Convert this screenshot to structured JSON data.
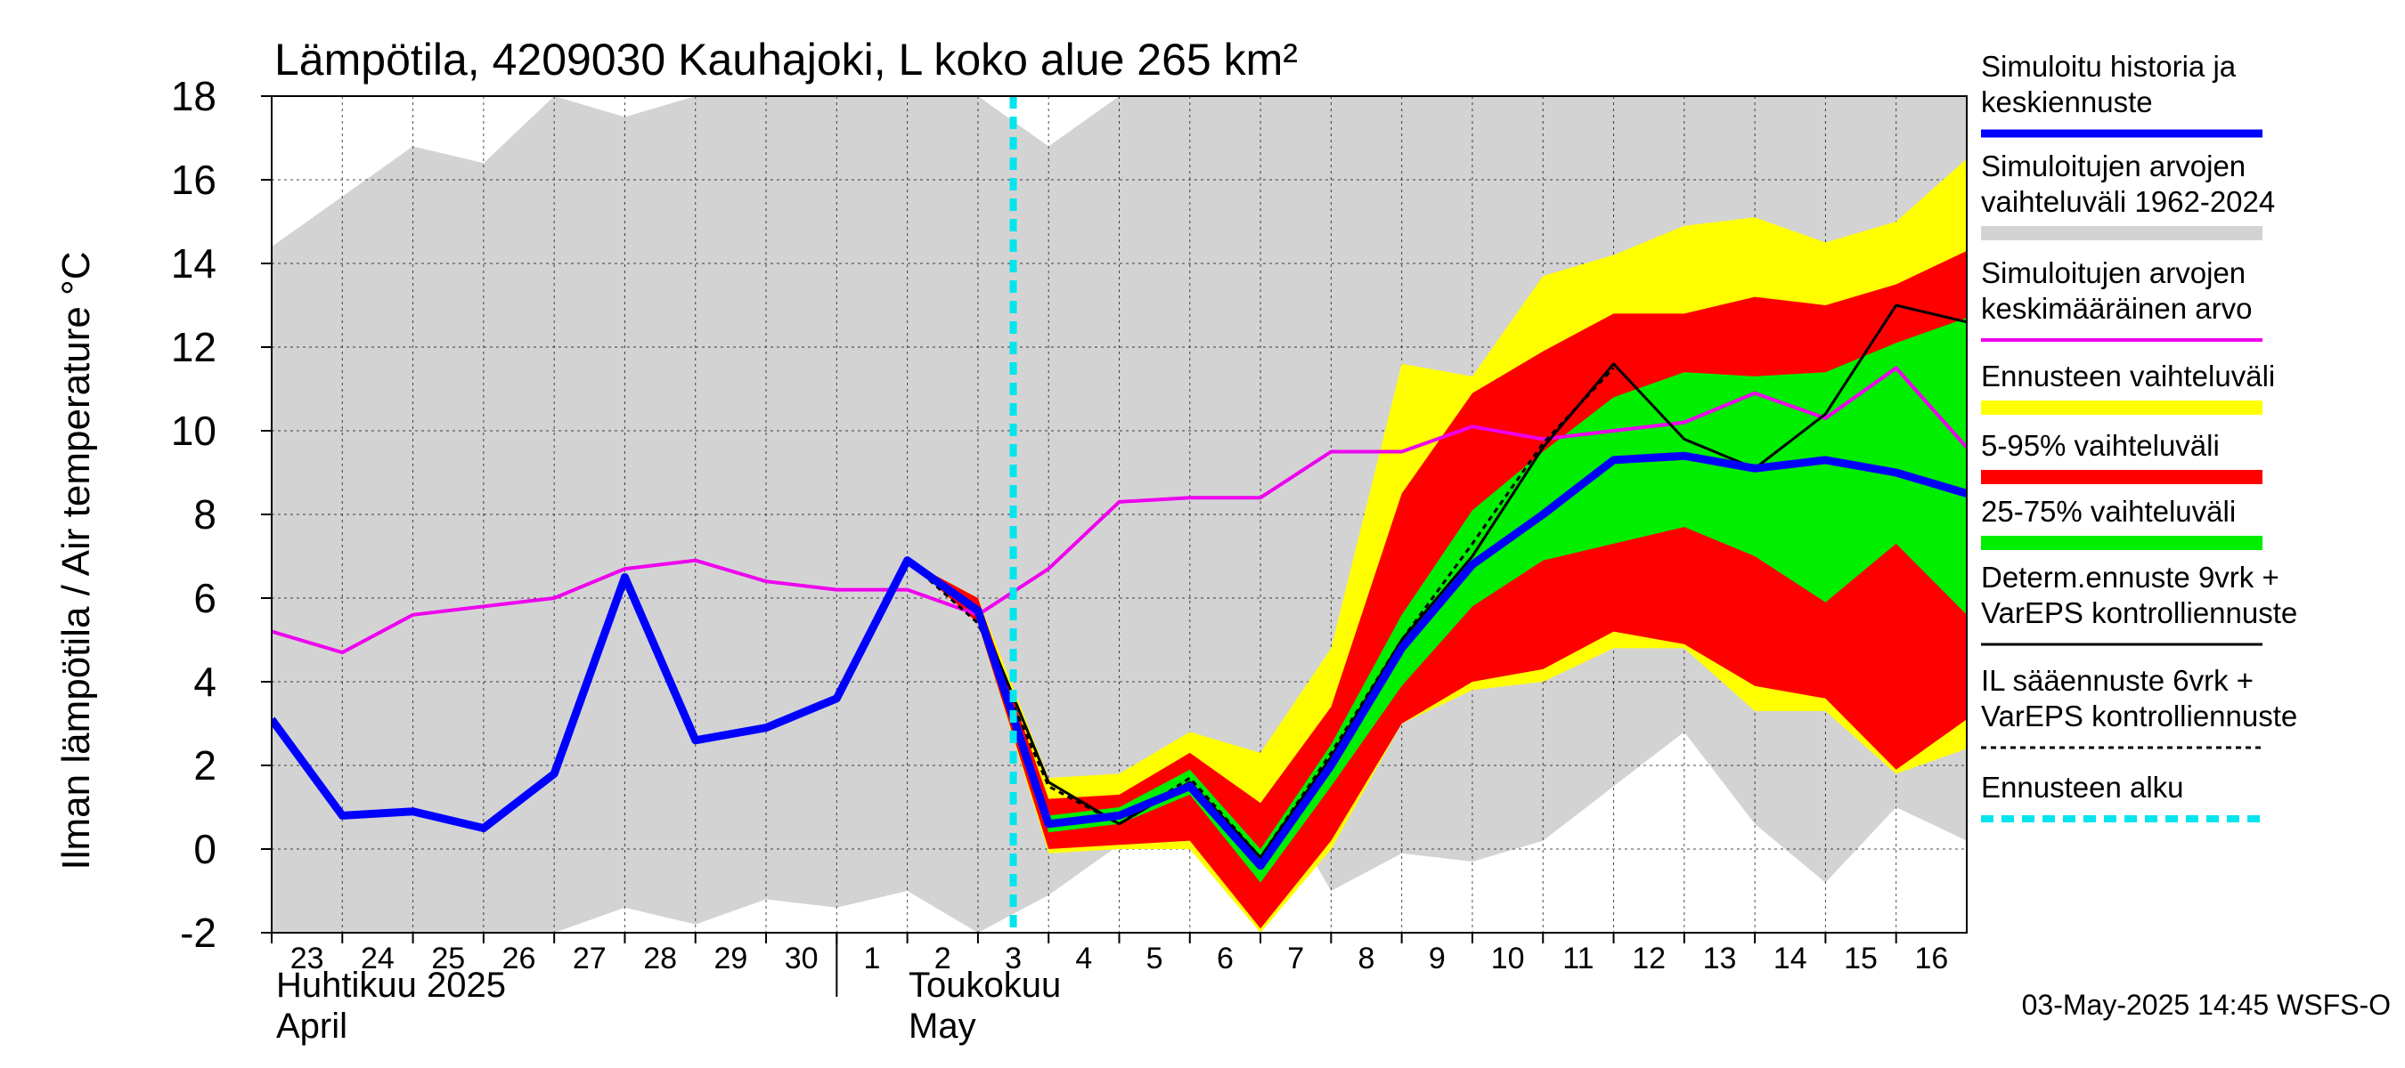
{
  "chart_data": {
    "type": "line",
    "title": "Lämpötila, 4209030 Kauhajoki, L koko alue 265 km²",
    "ylabel": "Ilman lämpötila / Air temperature   °C",
    "ylim": [
      -2,
      18
    ],
    "yticks": [
      "18",
      "16",
      "14",
      "12",
      "10",
      "8",
      "6",
      "4",
      "2",
      "0",
      "-2"
    ],
    "x_start": 23,
    "day_labels": [
      "23",
      "24",
      "25",
      "26",
      "27",
      "28",
      "29",
      "30",
      "1",
      "2",
      "3",
      "4",
      "5",
      "6",
      "7",
      "8",
      "9",
      "10",
      "11",
      "12",
      "13",
      "14",
      "15",
      "16"
    ],
    "month_labels": {
      "april_fi": "Huhtikuu  2025",
      "april_en": "April",
      "may_fi": "Toukokuu",
      "may_en": "May"
    },
    "footer": "03-May-2025 14:45 WSFS-O",
    "forecast_start": 33.5,
    "x": [
      23,
      24,
      25,
      26,
      27,
      28,
      29,
      30,
      31,
      32,
      33,
      34,
      35,
      36,
      37,
      38,
      39,
      40,
      41,
      42,
      43,
      44,
      45,
      46,
      47
    ],
    "series": {
      "hist_max": [
        14.4,
        15.6,
        16.8,
        16.4,
        18,
        17.5,
        18,
        18,
        18,
        18,
        18,
        16.8,
        18,
        18,
        18,
        18,
        18,
        18,
        18,
        18,
        18,
        18,
        18,
        18,
        18
      ],
      "hist_min": [
        -2,
        -2,
        -2,
        -2,
        -2,
        -1.4,
        -1.8,
        -1.2,
        -1.4,
        -1.0,
        -2.2,
        -1.1,
        0.1,
        0.2,
        1.9,
        -1.0,
        -0.1,
        -0.3,
        0.2,
        1.5,
        2.8,
        0.6,
        -0.8,
        1.0,
        0.2
      ],
      "ens_max": [
        null,
        null,
        null,
        null,
        null,
        null,
        null,
        null,
        null,
        6.9,
        6.0,
        1.7,
        1.8,
        2.8,
        2.3,
        4.8,
        11.6,
        11.3,
        13.7,
        14.2,
        14.9,
        15.1,
        14.5,
        15.0,
        16.5
      ],
      "ens_min": [
        null,
        null,
        null,
        null,
        null,
        null,
        null,
        null,
        null,
        6.9,
        5.4,
        -0.1,
        0.0,
        0.0,
        -2.0,
        0.0,
        3.0,
        3.8,
        4.0,
        4.8,
        4.8,
        3.3,
        3.3,
        1.8,
        2.4
      ],
      "p95": [
        null,
        null,
        null,
        null,
        null,
        null,
        null,
        null,
        null,
        6.9,
        6.0,
        1.2,
        1.3,
        2.3,
        1.1,
        3.4,
        8.5,
        10.9,
        11.9,
        12.8,
        12.8,
        13.2,
        13.0,
        13.5,
        14.3
      ],
      "p5": [
        null,
        null,
        null,
        null,
        null,
        null,
        null,
        null,
        null,
        6.9,
        5.4,
        0.0,
        0.1,
        0.2,
        -1.9,
        0.2,
        3.0,
        4.0,
        4.3,
        5.2,
        4.9,
        3.9,
        3.6,
        1.9,
        3.1
      ],
      "p75": [
        null,
        null,
        null,
        null,
        null,
        null,
        null,
        null,
        null,
        6.9,
        5.8,
        0.8,
        1.0,
        1.9,
        0.0,
        2.5,
        5.6,
        8.1,
        9.5,
        10.8,
        11.4,
        11.3,
        11.4,
        12.1,
        12.7
      ],
      "p25": [
        null,
        null,
        null,
        null,
        null,
        null,
        null,
        null,
        null,
        6.9,
        5.6,
        0.4,
        0.6,
        1.3,
        -0.8,
        1.5,
        3.9,
        5.8,
        6.9,
        7.3,
        7.7,
        7.0,
        5.9,
        7.3,
        5.6
      ],
      "sim_mean": [
        5.2,
        4.7,
        5.6,
        5.8,
        6.0,
        6.7,
        6.9,
        6.4,
        6.2,
        6.2,
        5.6,
        6.7,
        8.3,
        8.4,
        8.4,
        9.5,
        9.5,
        10.1,
        9.8,
        10.0,
        10.2,
        10.9,
        10.3,
        11.5,
        9.6
      ],
      "median": [
        3.1,
        0.8,
        0.9,
        0.5,
        1.8,
        6.5,
        2.6,
        2.9,
        3.6,
        6.9,
        5.7,
        0.6,
        0.8,
        1.5,
        -0.4,
        2.0,
        4.8,
        6.8,
        8.0,
        9.3,
        9.4,
        9.1,
        9.3,
        9.0,
        8.5
      ],
      "determ": [
        null,
        null,
        null,
        null,
        null,
        null,
        null,
        null,
        3.6,
        6.9,
        5.7,
        1.6,
        0.6,
        1.6,
        -0.2,
        2.2,
        5.0,
        7.0,
        9.6,
        11.6,
        9.8,
        9.1,
        10.4,
        13.0,
        12.6
      ],
      "il_forecast": [
        null,
        null,
        null,
        null,
        null,
        null,
        null,
        null,
        null,
        6.9,
        5.4,
        1.5,
        0.6,
        1.7,
        -0.2,
        2.3,
        5.0,
        7.3,
        9.7,
        11.5,
        null,
        null,
        null,
        null,
        null
      ]
    },
    "colors": {
      "hist_range": "#d3d3d3",
      "ens_range": "#ffff00",
      "p5_95": "#ff0000",
      "p25_75": "#00ee00",
      "sim_mean": "#ee00ee",
      "median": "#0000ff",
      "determ": "#000000",
      "forecast_start": "#00e5ee"
    },
    "legend": [
      {
        "id": "median",
        "lines": [
          "Simuloitu historia ja",
          "keskiennuste"
        ],
        "color": "#0000ff",
        "style": "thick"
      },
      {
        "id": "hist",
        "lines": [
          "Simuloitujen arvojen",
          "vaihteluväli 1962-2024"
        ],
        "color": "#d3d3d3",
        "style": "band"
      },
      {
        "id": "mean",
        "lines": [
          "Simuloitujen arvojen",
          "keskimääräinen arvo"
        ],
        "color": "#ee00ee",
        "style": "thin"
      },
      {
        "id": "ens",
        "lines": [
          "Ennusteen vaihteluväli"
        ],
        "color": "#ffff00",
        "style": "band"
      },
      {
        "id": "p95",
        "lines": [
          "5-95% vaihteluväli"
        ],
        "color": "#ff0000",
        "style": "band"
      },
      {
        "id": "p75",
        "lines": [
          "25-75% vaihteluväli"
        ],
        "color": "#00ee00",
        "style": "band"
      },
      {
        "id": "determ",
        "lines": [
          "Determ.ennuste 9vrk  +",
          "VarEPS kontrolliennuste"
        ],
        "color": "#000000",
        "style": "line"
      },
      {
        "id": "il",
        "lines": [
          "IL sääennuste 6vrk  +",
          "  VarEPS kontrolliennuste"
        ],
        "color": "#000000",
        "style": "dashed"
      },
      {
        "id": "start",
        "lines": [
          "Ennusteen alku"
        ],
        "color": "#00e5ee",
        "style": "cyan"
      }
    ]
  }
}
